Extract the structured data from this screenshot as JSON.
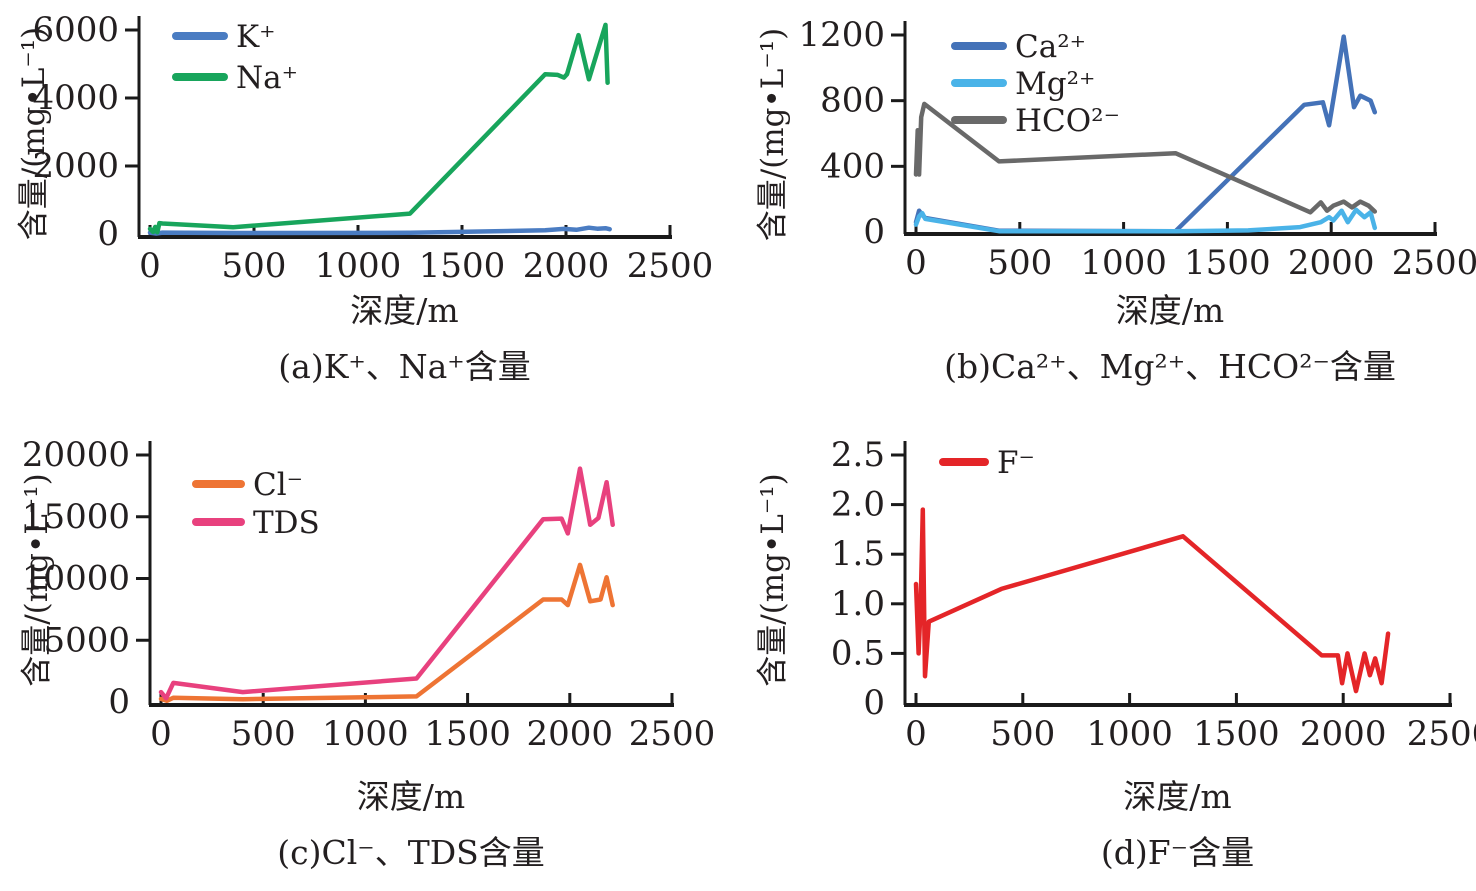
{
  "figure_title": "",
  "chart_data": [
    {
      "id": "a",
      "type": "line",
      "caption": "(a)K⁺、Na⁺含量",
      "xlabel": "深度/m",
      "ylabel": "含量/(mg•L⁻¹)",
      "xlim": [
        0,
        2500
      ],
      "ylim": [
        0,
        6000
      ],
      "xticks": [
        0,
        500,
        1000,
        1500,
        2000,
        2500
      ],
      "xtick_labels": [
        "0",
        "500",
        "1000",
        "1500",
        "2000",
        "2500"
      ],
      "yticks": [
        0,
        2000,
        4000,
        6000
      ],
      "ytick_labels": [
        "0",
        "2000",
        "4000",
        "6000"
      ],
      "grid": false,
      "legend_position": "top-left-inside",
      "series": [
        {
          "name": "K⁺",
          "color": "#4a7cc2",
          "x": [
            0,
            30,
            60,
            400,
            1250,
            1900,
            1990,
            2050,
            2110,
            2150,
            2190,
            2210
          ],
          "y": [
            40,
            15,
            40,
            30,
            35,
            110,
            150,
            125,
            185,
            155,
            170,
            140
          ]
        },
        {
          "name": "Na⁺",
          "color": "#18a55c",
          "x": [
            0,
            15,
            25,
            35,
            45,
            60,
            400,
            1250,
            1900,
            1960,
            1990,
            2005,
            2060,
            2110,
            2190,
            2200
          ],
          "y": [
            150,
            60,
            210,
            50,
            320,
            310,
            200,
            600,
            4700,
            4680,
            4600,
            4700,
            5850,
            4550,
            6150,
            4450
          ]
        }
      ]
    },
    {
      "id": "b",
      "type": "line",
      "caption": "(b)Ca²⁺、Mg²⁺、HCO²⁻含量",
      "xlabel": "深度/m",
      "ylabel": "含量/(mg•L⁻¹)",
      "xlim": [
        0,
        2500
      ],
      "ylim": [
        0,
        1200
      ],
      "xticks": [
        0,
        500,
        1000,
        1500,
        2000,
        2500
      ],
      "xtick_labels": [
        "0",
        "500",
        "1000",
        "1500",
        "2000",
        "2500"
      ],
      "yticks": [
        0,
        400,
        800,
        1200
      ],
      "ytick_labels": [
        "0",
        "400",
        "800",
        "1200"
      ],
      "grid": false,
      "legend_position": "top-left-inside",
      "series": [
        {
          "name": "Ca²⁺",
          "color": "#4472b8",
          "x": [
            0,
            15,
            30,
            45,
            400,
            1250,
            1870,
            1960,
            1990,
            2060,
            2110,
            2140,
            2190,
            2210
          ],
          "y": [
            60,
            130,
            105,
            85,
            8,
            5,
            775,
            790,
            650,
            1190,
            760,
            830,
            800,
            730
          ]
        },
        {
          "name": "Mg²⁺",
          "color": "#4ab3e8",
          "x": [
            0,
            15,
            30,
            45,
            400,
            1250,
            1600,
            1850,
            1950,
            1990,
            2010,
            2050,
            2080,
            2120,
            2160,
            2190,
            2210
          ],
          "y": [
            45,
            95,
            115,
            80,
            5,
            5,
            10,
            30,
            60,
            90,
            70,
            130,
            60,
            135,
            90,
            120,
            25
          ]
        },
        {
          "name": "HCO²⁻",
          "color": "#696969",
          "x": [
            0,
            8,
            15,
            25,
            40,
            400,
            1250,
            1900,
            1950,
            1980,
            2010,
            2060,
            2100,
            2140,
            2180,
            2210
          ],
          "y": [
            350,
            620,
            350,
            700,
            780,
            430,
            480,
            120,
            180,
            130,
            160,
            185,
            150,
            185,
            160,
            125
          ]
        }
      ]
    },
    {
      "id": "c",
      "type": "line",
      "caption": "(c)Cl⁻、TDS含量",
      "xlabel": "深度/m",
      "ylabel": "含量/(mg•L⁻¹)",
      "xlim": [
        0,
        2500
      ],
      "ylim": [
        0,
        20000
      ],
      "xticks": [
        0,
        500,
        1000,
        1500,
        2000,
        2500
      ],
      "xtick_labels": [
        "0",
        "500",
        "1000",
        "1500",
        "2000",
        "2500"
      ],
      "yticks": [
        0,
        5000,
        10000,
        15000,
        20000
      ],
      "ytick_labels": [
        "0",
        "5000",
        "10000",
        "15000",
        "20000"
      ],
      "grid": false,
      "legend_position": "top-left-inside",
      "series": [
        {
          "name": "Cl⁻",
          "color": "#ee7434",
          "x": [
            0,
            30,
            60,
            400,
            1250,
            1870,
            1960,
            1990,
            2050,
            2100,
            2150,
            2180,
            2210
          ],
          "y": [
            250,
            100,
            350,
            230,
            450,
            8300,
            8300,
            7850,
            11100,
            8150,
            8300,
            10100,
            7850
          ]
        },
        {
          "name": "TDS",
          "color": "#e8417e",
          "x": [
            0,
            25,
            60,
            400,
            1250,
            1870,
            1960,
            1990,
            2050,
            2100,
            2140,
            2180,
            2210
          ],
          "y": [
            800,
            300,
            1550,
            800,
            1900,
            14800,
            14850,
            13650,
            18900,
            14350,
            14900,
            17800,
            14350
          ]
        }
      ]
    },
    {
      "id": "d",
      "type": "line",
      "caption": "(d)F⁻含量",
      "xlabel": "深度/m",
      "ylabel": "含量/(mg•L⁻¹)",
      "xlim": [
        0,
        2500
      ],
      "ylim": [
        0,
        2.5
      ],
      "xticks": [
        0,
        500,
        1000,
        1500,
        2000,
        2500
      ],
      "xtick_labels": [
        "0",
        "500",
        "1000",
        "1500",
        "2000",
        "2500"
      ],
      "yticks": [
        0,
        0.5,
        1.0,
        1.5,
        2.0,
        2.5
      ],
      "ytick_labels": [
        "0",
        "0.5",
        "1.0",
        "1.5",
        "2.0",
        "2.5"
      ],
      "grid": false,
      "legend_position": "top-left-inside",
      "series": [
        {
          "name": "F⁻",
          "color": "#e42528",
          "x": [
            0,
            12,
            22,
            32,
            42,
            60,
            400,
            1250,
            1900,
            1975,
            1995,
            2020,
            2060,
            2100,
            2125,
            2150,
            2180,
            2210
          ],
          "y": [
            1.2,
            0.5,
            1.0,
            1.95,
            0.27,
            0.82,
            1.15,
            1.68,
            0.48,
            0.48,
            0.2,
            0.5,
            0.12,
            0.5,
            0.28,
            0.45,
            0.2,
            0.7
          ]
        }
      ]
    }
  ],
  "axis_color": "#1a1a1a",
  "text_color": "#231f20"
}
